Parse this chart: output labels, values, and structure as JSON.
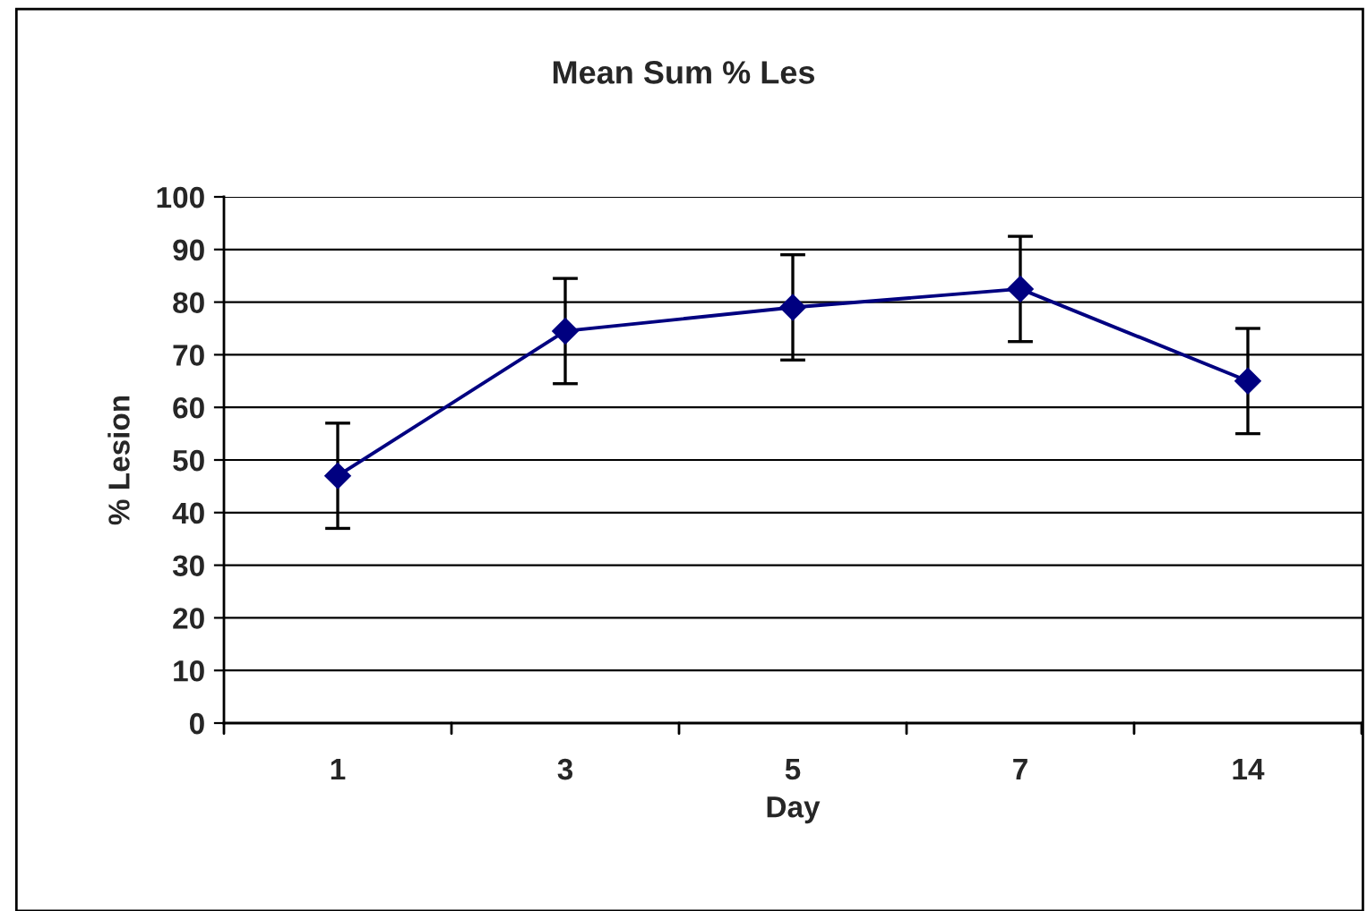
{
  "chart_data": {
    "type": "line",
    "title": "Mean Sum % Les",
    "xlabel": "Day",
    "ylabel": "% Lesion",
    "categories": [
      "1",
      "3",
      "5",
      "7",
      "14"
    ],
    "series": [
      {
        "color": "#000080",
        "values": [
          47,
          74.5,
          79,
          82.5,
          65
        ],
        "errors": [
          10,
          10,
          10,
          10,
          10
        ]
      }
    ],
    "ylim": [
      0,
      100
    ],
    "yticks": [
      0,
      10,
      20,
      30,
      40,
      50,
      60,
      70,
      80,
      90,
      100
    ],
    "grid": "y",
    "legend": false,
    "marker": "diamond",
    "line_style": "solid"
  }
}
